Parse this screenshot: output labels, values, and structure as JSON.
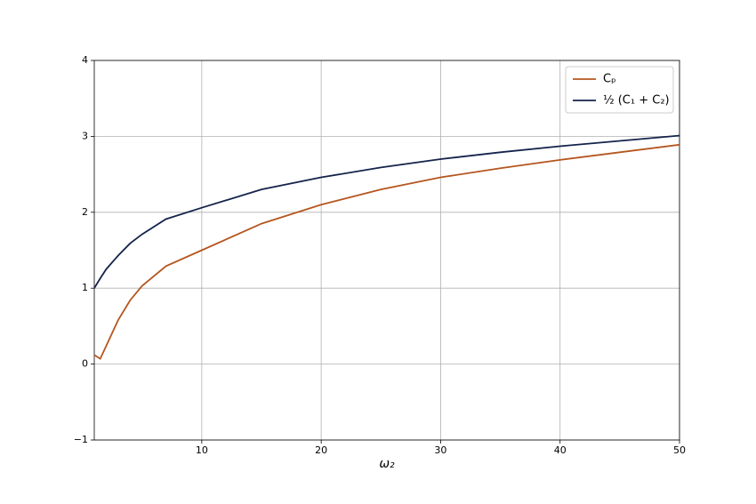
{
  "chart_data": {
    "type": "line",
    "x_label": "ω₂",
    "x": [
      1,
      1.5,
      2,
      3,
      4,
      5,
      7,
      10,
      15,
      20,
      25,
      30,
      35,
      40,
      45,
      50
    ],
    "series": [
      {
        "name": "Cₚ",
        "color": "#b5561f",
        "values": [
          0.12,
          0.07,
          0.24,
          0.58,
          0.84,
          1.03,
          1.29,
          1.5,
          1.85,
          2.1,
          2.3,
          2.46,
          2.58,
          2.69,
          2.79,
          2.89
        ]
      },
      {
        "name": "½ (C₁ + C₂)",
        "color": "#14234b",
        "values": [
          1.0,
          1.13,
          1.25,
          1.43,
          1.59,
          1.71,
          1.91,
          2.06,
          2.3,
          2.46,
          2.59,
          2.7,
          2.79,
          2.87,
          2.94,
          3.01
        ]
      }
    ],
    "xlim": [
      1,
      50
    ],
    "ylim": [
      -1,
      4
    ],
    "xticks": [
      10,
      20,
      30,
      40,
      50
    ],
    "yticks": [
      {
        "value": -1,
        "label": "−1"
      },
      0,
      1,
      2,
      3,
      4
    ],
    "grid": true,
    "legend": "upper right"
  }
}
